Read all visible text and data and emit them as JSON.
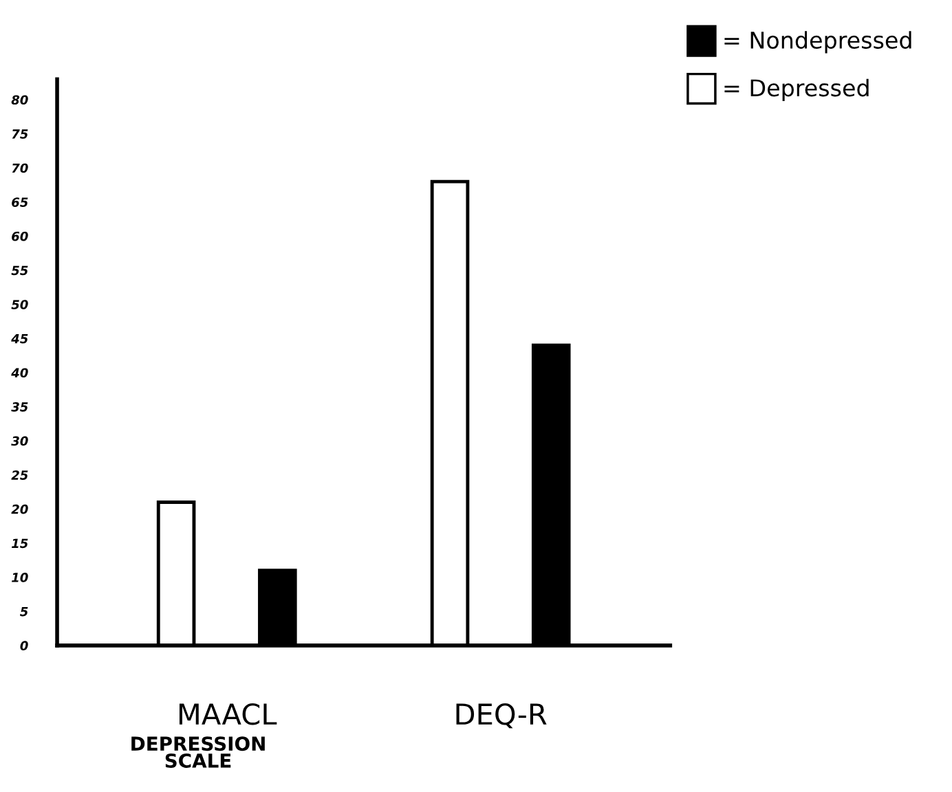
{
  "chart_data": {
    "type": "bar",
    "categories": [
      "MAACL",
      "DEQ-R"
    ],
    "xlabel": "DEPRESSION\nSCALE",
    "series": [
      {
        "name": "= Depressed",
        "color": "#ffffff",
        "values": [
          21,
          68
        ]
      },
      {
        "name": "= Nondepressed",
        "color": "#000000",
        "values": [
          11,
          44
        ]
      }
    ],
    "ylim": [
      0,
      83
    ],
    "yticks": [
      0,
      5,
      10,
      15,
      20,
      25,
      30,
      35,
      40,
      45,
      50,
      55,
      60,
      65,
      70,
      75,
      80
    ],
    "grid": false,
    "legend": "top right"
  }
}
